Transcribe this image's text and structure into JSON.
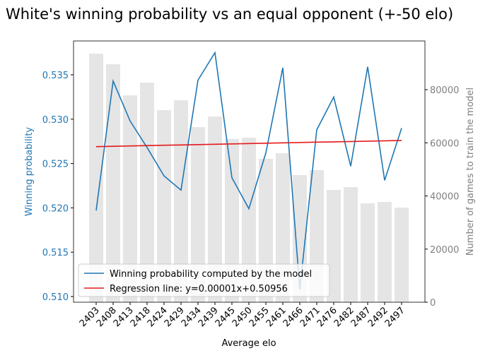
{
  "chart_data": {
    "type": "line",
    "title": "White's winning probability vs an equal opponent (+-50 elo)",
    "x_label": "Average elo",
    "y_label": "Winning probability",
    "y2_label": "Number of games to train the model",
    "categories": [
      "2403",
      "2408",
      "2413",
      "2418",
      "2424",
      "2429",
      "2434",
      "2439",
      "2445",
      "2450",
      "2455",
      "2461",
      "2466",
      "2471",
      "2476",
      "2482",
      "2487",
      "2492",
      "2497"
    ],
    "series": [
      {
        "name": "Winning probability computed by the model",
        "color": "#1f77b4",
        "values": [
          0.5197,
          0.5343,
          0.5298,
          0.5268,
          0.5236,
          0.522,
          0.5344,
          0.5375,
          0.5234,
          0.5199,
          0.5262,
          0.5358,
          0.5108,
          0.5288,
          0.5325,
          0.5247,
          0.5359,
          0.5231,
          0.529
        ]
      },
      {
        "name": "Regression line: y=0.00001x+0.50956",
        "color": "#e41a1c",
        "values": [
          0.5269,
          0.52694,
          0.52698,
          0.52702,
          0.52706,
          0.52709,
          0.52713,
          0.52717,
          0.52721,
          0.52725,
          0.52729,
          0.52733,
          0.52737,
          0.52741,
          0.52744,
          0.52748,
          0.52752,
          0.52756,
          0.5276
        ]
      },
      {
        "name": "Number of games",
        "type": "bar",
        "axis": "y2",
        "color": "#e5e5e5",
        "values": [
          93550,
          89570,
          77870,
          82660,
          72290,
          76010,
          65910,
          69900,
          61400,
          61930,
          53950,
          56080,
          47840,
          49700,
          42260,
          43320,
          37210,
          37740,
          35610
        ]
      }
    ],
    "ylim": [
      0.50936,
      0.53882
    ],
    "yticks": [
      {
        "value": 0.51,
        "label": "0.510"
      },
      {
        "value": 0.515,
        "label": "0.515"
      },
      {
        "value": 0.52,
        "label": "0.520"
      },
      {
        "value": 0.525,
        "label": "0.525"
      },
      {
        "value": 0.53,
        "label": "0.530"
      },
      {
        "value": 0.535,
        "label": "0.535"
      }
    ],
    "y2lim": [
      0,
      98340
    ],
    "y2ticks": [
      0,
      20000,
      40000,
      60000,
      80000
    ],
    "legend": "lower left"
  }
}
